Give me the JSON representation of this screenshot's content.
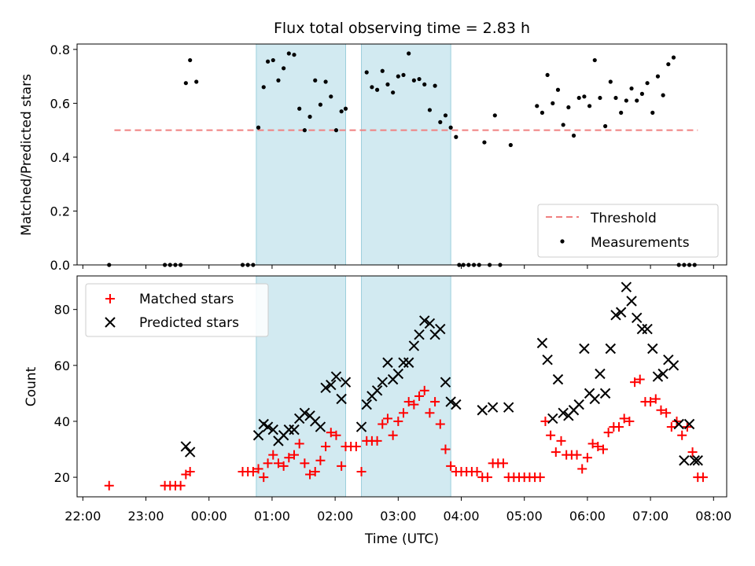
{
  "chart_data": [
    {
      "type": "scatter",
      "title": "Flux total observing time = 2.83 h",
      "ylabel": "Matched/Predicted stars",
      "xlabel": "",
      "xlim": [
        "22:00",
        "08:00"
      ],
      "ylim": [
        0,
        0.82
      ],
      "yticks": [
        "0.0",
        "0.2",
        "0.4",
        "0.6",
        "0.8"
      ],
      "legend": {
        "position": "lower right",
        "entries": [
          "Threshold",
          "Measurements"
        ]
      },
      "shaded_windows": [
        [
          "00:45",
          "02:10"
        ],
        [
          "02:25",
          "03:50"
        ]
      ],
      "threshold": {
        "name": "Threshold",
        "value": 0.5,
        "x_range": [
          "22:30",
          "07:45"
        ],
        "color": "#f08080"
      },
      "series": [
        {
          "name": "Measurements",
          "color": "#000000",
          "x": [
            "22:25",
            "23:18",
            "23:23",
            "23:28",
            "23:33",
            "23:38",
            "23:42",
            "23:48",
            "00:32",
            "00:37",
            "00:42",
            "00:47",
            "00:52",
            "00:56",
            "01:01",
            "01:06",
            "01:11",
            "01:16",
            "01:21",
            "01:26",
            "01:31",
            "01:36",
            "01:41",
            "01:46",
            "01:51",
            "01:56",
            "02:01",
            "02:06",
            "02:10",
            "02:30",
            "02:35",
            "02:40",
            "02:45",
            "02:50",
            "02:55",
            "03:00",
            "03:05",
            "03:10",
            "03:15",
            "03:20",
            "03:25",
            "03:30",
            "03:35",
            "03:40",
            "03:45",
            "03:50",
            "03:55",
            "03:58",
            "04:02",
            "04:07",
            "04:12",
            "04:17",
            "04:22",
            "04:27",
            "04:32",
            "04:37",
            "04:47",
            "05:12",
            "05:17",
            "05:22",
            "05:27",
            "05:32",
            "05:37",
            "05:42",
            "05:47",
            "05:52",
            "05:57",
            "06:02",
            "06:07",
            "06:12",
            "06:17",
            "06:22",
            "06:27",
            "06:32",
            "06:37",
            "06:42",
            "06:47",
            "06:52",
            "06:57",
            "07:02",
            "07:07",
            "07:12",
            "07:17",
            "07:22",
            "07:27",
            "07:32",
            "07:37",
            "07:42"
          ],
          "y": [
            0,
            0,
            0,
            0,
            0,
            0.675,
            0.76,
            0.68,
            0,
            0,
            0,
            0.51,
            0.66,
            0.755,
            0.76,
            0.685,
            0.73,
            0.785,
            0.78,
            0.58,
            0.5,
            0.55,
            0.685,
            0.595,
            0.68,
            0.625,
            0.5,
            0.57,
            0.58,
            0.715,
            0.66,
            0.65,
            0.72,
            0.67,
            0.64,
            0.7,
            0.705,
            0.785,
            0.685,
            0.69,
            0.67,
            0.575,
            0.665,
            0.53,
            0.555,
            0.51,
            0.475,
            0,
            0,
            0,
            0,
            0,
            0.455,
            0,
            0.555,
            0,
            0.445,
            0.59,
            0.565,
            0.705,
            0.6,
            0.65,
            0.52,
            0.585,
            0.48,
            0.62,
            0.625,
            0.59,
            0.76,
            0.62,
            0.515,
            0.68,
            0.62,
            0.565,
            0.61,
            0.655,
            0.61,
            0.635,
            0.675,
            0.565,
            0.7,
            0.63,
            0.745,
            0.77,
            0,
            0,
            0,
            0
          ]
        }
      ]
    },
    {
      "type": "scatter",
      "title": "",
      "ylabel": "Count",
      "xlabel": "Time (UTC)",
      "xlim": [
        "22:00",
        "08:00"
      ],
      "ylim": [
        13,
        92
      ],
      "yticks": [
        "20",
        "40",
        "60",
        "80"
      ],
      "xticks": [
        "22:00",
        "23:00",
        "00:00",
        "01:00",
        "02:00",
        "03:00",
        "04:00",
        "05:00",
        "06:00",
        "07:00",
        "08:00"
      ],
      "legend": {
        "position": "upper left",
        "entries": [
          "Matched stars",
          "Predicted stars"
        ]
      },
      "shaded_windows": [
        [
          "00:45",
          "02:10"
        ],
        [
          "02:25",
          "03:50"
        ]
      ],
      "series": [
        {
          "name": "Matched stars",
          "color": "#ff0000",
          "marker": "plus",
          "x": [
            "22:25",
            "23:18",
            "23:23",
            "23:28",
            "23:33",
            "23:38",
            "23:42",
            "00:32",
            "00:37",
            "00:42",
            "00:47",
            "00:52",
            "00:56",
            "01:01",
            "01:06",
            "01:11",
            "01:16",
            "01:21",
            "01:26",
            "01:31",
            "01:36",
            "01:41",
            "01:46",
            "01:51",
            "01:56",
            "02:01",
            "02:06",
            "02:10",
            "02:15",
            "02:20",
            "02:25",
            "02:30",
            "02:35",
            "02:40",
            "02:45",
            "02:50",
            "02:55",
            "03:00",
            "03:05",
            "03:10",
            "03:15",
            "03:20",
            "03:25",
            "03:30",
            "03:35",
            "03:40",
            "03:45",
            "03:50",
            "03:55",
            "04:00",
            "04:05",
            "04:10",
            "04:15",
            "04:20",
            "04:25",
            "04:30",
            "04:35",
            "04:40",
            "04:45",
            "04:50",
            "04:55",
            "05:00",
            "05:05",
            "05:10",
            "05:15",
            "05:20",
            "05:25",
            "05:30",
            "05:35",
            "05:40",
            "05:45",
            "05:50",
            "05:55",
            "06:00",
            "06:05",
            "06:10",
            "06:15",
            "06:20",
            "06:25",
            "06:30",
            "06:35",
            "06:40",
            "06:45",
            "06:50",
            "06:55",
            "07:00",
            "07:05",
            "07:10",
            "07:15",
            "07:20",
            "07:25",
            "07:30",
            "07:35",
            "07:40",
            "07:45",
            "07:50"
          ],
          "y": [
            17,
            17,
            17,
            17,
            17,
            21,
            22,
            22,
            22,
            22,
            23,
            20,
            25,
            28,
            25,
            24,
            27,
            28,
            32,
            25,
            21,
            22,
            26,
            31,
            36,
            35,
            24,
            31,
            31,
            31,
            22,
            33,
            33,
            33,
            39,
            41,
            35,
            40,
            43,
            47,
            46,
            49,
            51,
            43,
            47,
            39,
            30,
            24,
            22,
            22,
            22,
            22,
            22,
            20,
            20,
            25,
            25,
            25,
            20,
            20,
            20,
            20,
            20,
            20,
            20,
            40,
            35,
            29,
            33,
            28,
            28,
            28,
            23,
            27,
            32,
            31,
            30,
            36,
            38,
            38,
            41,
            40,
            54,
            55,
            47,
            47,
            48,
            44,
            43,
            38,
            40,
            35,
            38,
            29,
            20,
            20
          ]
        },
        {
          "name": "Predicted stars",
          "color": "#000000",
          "marker": "x",
          "x": [
            "23:38",
            "23:42",
            "00:47",
            "00:52",
            "00:56",
            "01:01",
            "01:06",
            "01:11",
            "01:16",
            "01:21",
            "01:26",
            "01:31",
            "01:36",
            "01:41",
            "01:46",
            "01:51",
            "01:56",
            "02:01",
            "02:06",
            "02:10",
            "02:25",
            "02:30",
            "02:35",
            "02:40",
            "02:45",
            "02:50",
            "02:55",
            "03:00",
            "03:05",
            "03:10",
            "03:15",
            "03:20",
            "03:25",
            "03:30",
            "03:35",
            "03:40",
            "03:45",
            "03:50",
            "03:55",
            "04:20",
            "04:30",
            "04:45",
            "05:17",
            "05:22",
            "05:27",
            "05:32",
            "05:37",
            "05:42",
            "05:47",
            "05:52",
            "05:57",
            "06:02",
            "06:07",
            "06:12",
            "06:17",
            "06:22",
            "06:27",
            "06:32",
            "06:37",
            "06:42",
            "06:47",
            "06:52",
            "06:57",
            "07:02",
            "07:07",
            "07:12",
            "07:17",
            "07:22",
            "07:27",
            "07:32",
            "07:37",
            "07:42",
            "07:45"
          ],
          "y": [
            31,
            29,
            35,
            39,
            38,
            37,
            33,
            35,
            37,
            37,
            41,
            43,
            42,
            40,
            38,
            52,
            53,
            56,
            48,
            54,
            38,
            46,
            49,
            51,
            54,
            61,
            55,
            57,
            61,
            61,
            67,
            71,
            76,
            75,
            71,
            73,
            54,
            47,
            46,
            44,
            45,
            45,
            68,
            62,
            41,
            55,
            43,
            42,
            44,
            46,
            66,
            50,
            48,
            57,
            50,
            66,
            78,
            79,
            88,
            83,
            77,
            73,
            73,
            66,
            56,
            57,
            62,
            60,
            39,
            26,
            39,
            26,
            26
          ]
        }
      ]
    }
  ]
}
